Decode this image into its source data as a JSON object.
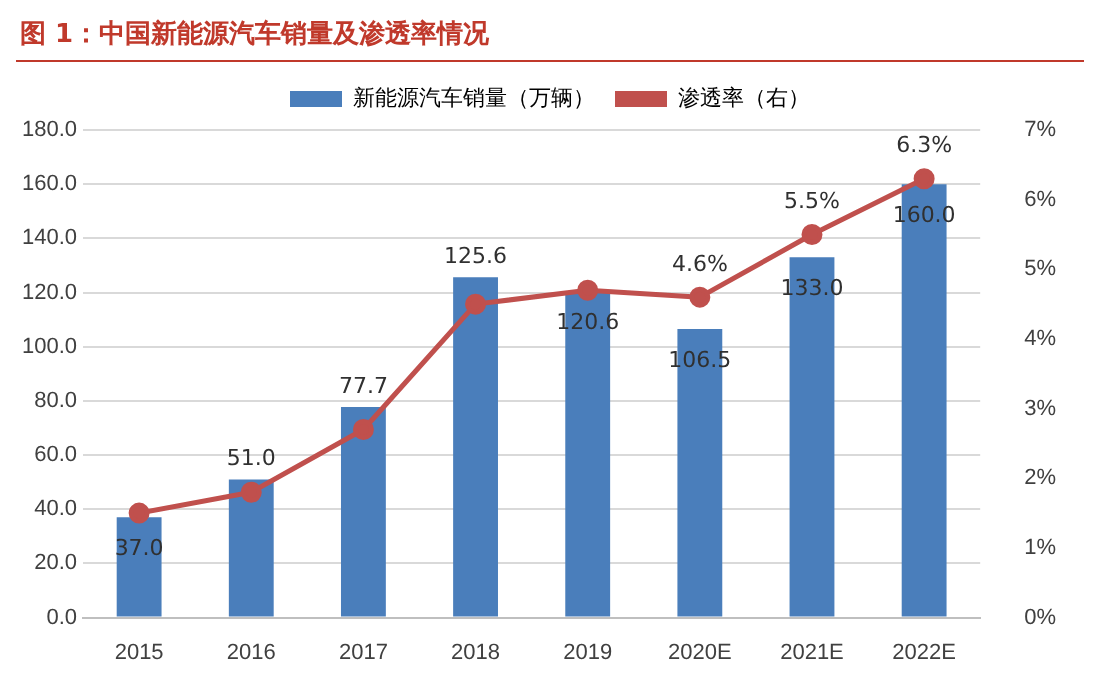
{
  "chart_data": {
    "type": "bar",
    "title": "图 1：中国新能源汽车销量及渗透率情况",
    "categories": [
      "2015",
      "2016",
      "2017",
      "2018",
      "2019",
      "2020E",
      "2021E",
      "2022E"
    ],
    "series": [
      {
        "name": "新能源汽车销量（万辆）",
        "color": "#4a7ebb",
        "values": [
          37.0,
          51.0,
          77.7,
          125.6,
          120.6,
          106.5,
          133.0,
          160.0
        ],
        "value_labels": [
          "37.0",
          "51.0",
          "77.7",
          "125.6",
          "120.6",
          "106.5",
          "133.0",
          "160.0"
        ]
      },
      {
        "name": "渗透率（右）",
        "type": "line",
        "axis": "y2",
        "color": "#c0504d",
        "marker": "circle",
        "values": [
          1.5,
          1.8,
          2.7,
          4.5,
          4.7,
          4.6,
          5.5,
          6.3
        ],
        "value_labels": [
          null,
          null,
          null,
          null,
          null,
          "4.6%",
          "5.5%",
          "6.3%"
        ]
      }
    ],
    "ylim": [
      0,
      180
    ],
    "yticks": [
      {
        "value": 0,
        "label": "0.0"
      },
      {
        "value": 20,
        "label": "20.0"
      },
      {
        "value": 40,
        "label": "40.0"
      },
      {
        "value": 60,
        "label": "60.0"
      },
      {
        "value": 80,
        "label": "80.0"
      },
      {
        "value": 100,
        "label": "100.0"
      },
      {
        "value": 120,
        "label": "120.0"
      },
      {
        "value": 140,
        "label": "140.0"
      },
      {
        "value": 160,
        "label": "160.0"
      },
      {
        "value": 180,
        "label": "180.0"
      }
    ],
    "y2lim": [
      0,
      7
    ],
    "y2ticks": [
      {
        "value": 0,
        "label": "0%"
      },
      {
        "value": 1,
        "label": "1%"
      },
      {
        "value": 2,
        "label": "2%"
      },
      {
        "value": 3,
        "label": "3%"
      },
      {
        "value": 4,
        "label": "4%"
      },
      {
        "value": 5,
        "label": "5%"
      },
      {
        "value": 6,
        "label": "6%"
      },
      {
        "value": 7,
        "label": "7%"
      }
    ],
    "grid": "y",
    "legend": "top"
  }
}
